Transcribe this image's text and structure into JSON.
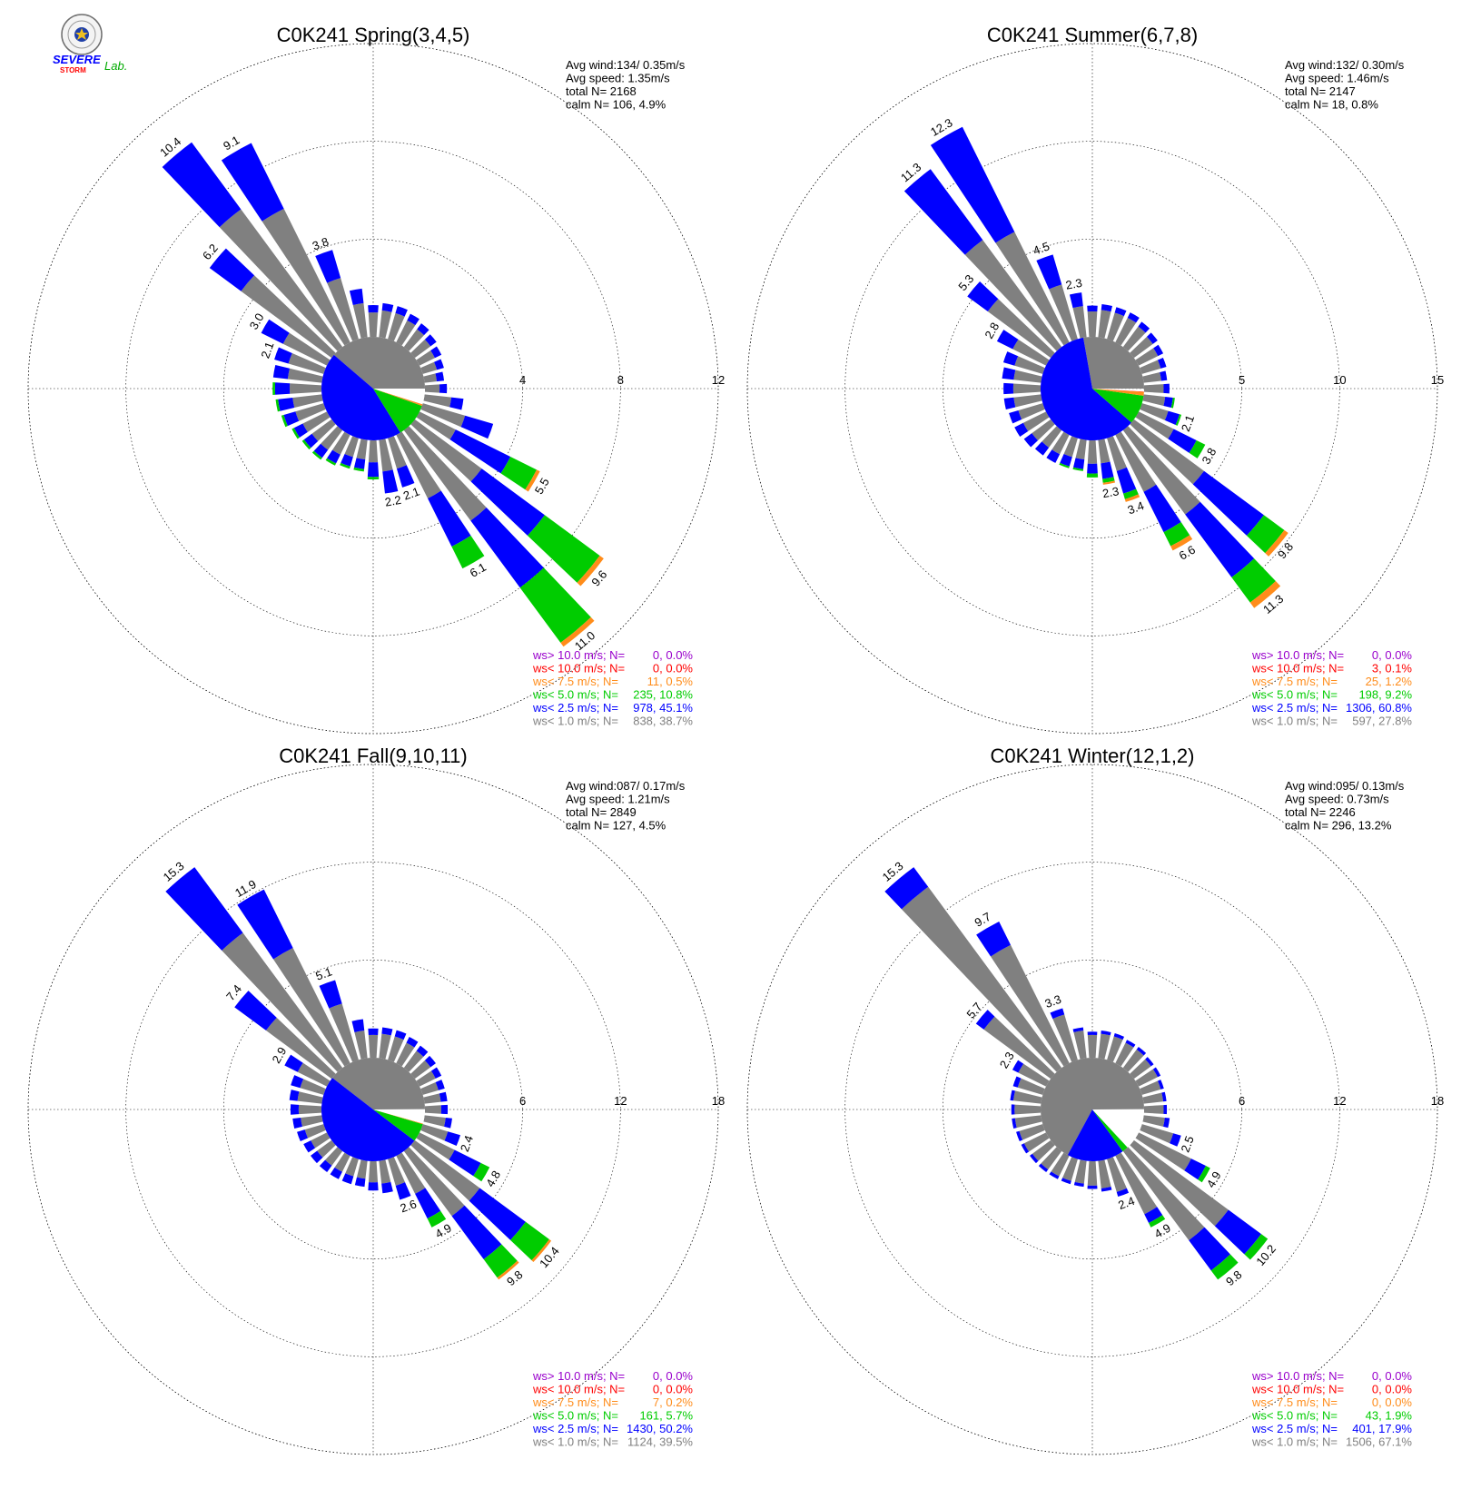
{
  "logo": {
    "line1": "SEVERE",
    "line2": "STORM",
    "line3": "Lab."
  },
  "colors": {
    "gt10": "#9900cc",
    "lt10": "#ff0000",
    "lt7_5": "#ff8c1a",
    "lt5": "#00cc00",
    "lt2_5": "#0000ff",
    "lt1": "#808080",
    "calm": "#ffffff",
    "grid": "#000000",
    "text": "#000000"
  },
  "legend_labels": [
    "ws> 10.0 m/s; N=",
    "ws< 10.0 m/s; N=",
    "ws<  7.5 m/s; N=",
    "ws<  5.0 m/s; N=",
    "ws<  2.5 m/s; N=",
    "ws<  1.0 m/s; N="
  ],
  "chart_data": [
    {
      "type": "wind_rose",
      "title": "C0K241 Spring(3,4,5)",
      "stats": [
        "Avg wind:134/ 0.35m/s",
        "Avg speed: 1.35m/s",
        "total N=      2168",
        "calm N=    106,   4.9%"
      ],
      "rmax": 12,
      "ring_labels": [
        "4",
        "8",
        "12"
      ],
      "inner_pie": [
        {
          "cls": "lt1",
          "pct": 38.7
        },
        {
          "cls": "lt2_5",
          "pct": 45.1
        },
        {
          "cls": "lt5",
          "pct": 10.8
        },
        {
          "cls": "lt7_5",
          "pct": 0.5
        },
        {
          "cls": "calm",
          "pct": 4.9
        }
      ],
      "legend_values": [
        "0,  0.0%",
        "0,  0.0%",
        "11,  0.5%",
        "235, 10.8%",
        "978, 45.1%",
        "838, 38.7%"
      ],
      "sectors": [
        {
          "dir": 0,
          "len": 1.3,
          "lt2_5": 0.3
        },
        {
          "dir": 10,
          "len": 1.4,
          "lt2_5": 0.3
        },
        {
          "dir": 20,
          "len": 1.4,
          "lt2_5": 0.3
        },
        {
          "dir": 30,
          "len": 1.3,
          "lt2_5": 0.3
        },
        {
          "dir": 40,
          "len": 1.2,
          "lt2_5": 0.3
        },
        {
          "dir": 50,
          "len": 1.1,
          "lt2_5": 0.3
        },
        {
          "dir": 60,
          "len": 1.0,
          "lt2_5": 0.3
        },
        {
          "dir": 70,
          "len": 0.9,
          "lt2_5": 0.3
        },
        {
          "dir": 80,
          "len": 0.8,
          "lt2_5": 0.3
        },
        {
          "dir": 90,
          "len": 0.9,
          "lt2_5": 0.3
        },
        {
          "dir": 100,
          "len": 1.6,
          "lt2_5": 0.5
        },
        {
          "dir": 110,
          "len": 3.0,
          "lt2_5": 1.2
        },
        {
          "dir": 120,
          "len": 5.5,
          "lt2_5": 2.5,
          "lt5": 1.2,
          "lt7_5": 0.15,
          "label": "5.5"
        },
        {
          "dir": 130,
          "len": 9.6,
          "lt2_5": 3.2,
          "lt5": 2.8,
          "lt7_5": 0.2,
          "label": "9.6"
        },
        {
          "dir": 140,
          "len": 11.0,
          "lt2_5": 3.4,
          "lt5": 2.8,
          "lt7_5": 0.2,
          "label": "11.0"
        },
        {
          "dir": 150,
          "len": 6.1,
          "lt2_5": 2.2,
          "lt5": 1.0,
          "label": "6.1"
        },
        {
          "dir": 160,
          "len": 2.1,
          "lt2_5": 0.8,
          "label": "2.1"
        },
        {
          "dir": 170,
          "len": 2.2,
          "lt2_5": 0.9,
          "label": "2.2"
        },
        {
          "dir": 180,
          "len": 1.6,
          "lt2_5": 0.6,
          "lt5": 0.1
        },
        {
          "dir": 190,
          "len": 1.3,
          "lt2_5": 0.4,
          "lt5": 0.1
        },
        {
          "dir": 200,
          "len": 1.3,
          "lt2_5": 0.4,
          "lt5": 0.1
        },
        {
          "dir": 210,
          "len": 1.4,
          "lt2_5": 0.4,
          "lt5": 0.1
        },
        {
          "dir": 220,
          "len": 1.5,
          "lt2_5": 0.4,
          "lt5": 0.1
        },
        {
          "dir": 230,
          "len": 1.5,
          "lt2_5": 0.4,
          "lt5": 0.1
        },
        {
          "dir": 240,
          "len": 1.6,
          "lt2_5": 0.4,
          "lt5": 0.1
        },
        {
          "dir": 250,
          "len": 1.8,
          "lt2_5": 0.5,
          "lt5": 0.1
        },
        {
          "dir": 260,
          "len": 1.9,
          "lt2_5": 0.6,
          "lt5": 0.1
        },
        {
          "dir": 270,
          "len": 2.0,
          "lt2_5": 0.6,
          "lt5": 0.1
        },
        {
          "dir": 280,
          "len": 2.0,
          "lt2_5": 0.6
        },
        {
          "dir": 290,
          "len": 2.1,
          "lt2_5": 0.6,
          "label": "2.1"
        },
        {
          "dir": 300,
          "len": 3.0,
          "lt2_5": 1.0,
          "label": "3.0"
        },
        {
          "dir": 310,
          "len": 6.2,
          "lt2_5": 1.6,
          "label": "6.2"
        },
        {
          "dir": 320,
          "len": 10.4,
          "lt2_5": 3.4,
          "label": "10.4"
        },
        {
          "dir": 330,
          "len": 9.1,
          "lt2_5": 3.0,
          "label": "9.1"
        },
        {
          "dir": 340,
          "len": 3.8,
          "lt2_5": 1.2,
          "label": "3.8"
        },
        {
          "dir": 350,
          "len": 2.0,
          "lt2_5": 0.6
        }
      ]
    },
    {
      "type": "wind_rose",
      "title": "C0K241 Summer(6,7,8)",
      "stats": [
        "Avg wind:132/ 0.30m/s",
        "Avg speed: 1.46m/s",
        "total N=      2147",
        "calm N=     18,   0.8%"
      ],
      "rmax": 15,
      "ring_labels": [
        "5",
        "10",
        "15"
      ],
      "inner_pie": [
        {
          "cls": "lt1",
          "pct": 27.8
        },
        {
          "cls": "lt2_5",
          "pct": 60.8
        },
        {
          "cls": "lt5",
          "pct": 9.2
        },
        {
          "cls": "lt7_5",
          "pct": 1.2
        },
        {
          "cls": "lt10",
          "pct": 0.1
        },
        {
          "cls": "calm",
          "pct": 0.8
        }
      ],
      "legend_values": [
        "0,  0.0%",
        "3,  0.1%",
        "25,  1.2%",
        "198,  9.2%",
        "1306, 60.8%",
        "597, 27.8%"
      ],
      "sectors": [
        {
          "dir": 0,
          "len": 1.6,
          "lt2_5": 0.3
        },
        {
          "dir": 10,
          "len": 1.7,
          "lt2_5": 0.3
        },
        {
          "dir": 20,
          "len": 1.7,
          "lt2_5": 0.3
        },
        {
          "dir": 30,
          "len": 1.7,
          "lt2_5": 0.3
        },
        {
          "dir": 40,
          "len": 1.6,
          "lt2_5": 0.3
        },
        {
          "dir": 50,
          "len": 1.5,
          "lt2_5": 0.3
        },
        {
          "dir": 60,
          "len": 1.4,
          "lt2_5": 0.3
        },
        {
          "dir": 70,
          "len": 1.3,
          "lt2_5": 0.3
        },
        {
          "dir": 80,
          "len": 1.2,
          "lt2_5": 0.3
        },
        {
          "dir": 90,
          "len": 1.3,
          "lt2_5": 0.3
        },
        {
          "dir": 100,
          "len": 1.6,
          "lt2_5": 0.4,
          "lt5": 0.1
        },
        {
          "dir": 110,
          "len": 2.1,
          "lt2_5": 0.6,
          "lt5": 0.1,
          "label": "2.1"
        },
        {
          "dir": 120,
          "len": 3.8,
          "lt2_5": 1.3,
          "lt5": 0.5,
          "label": "3.8"
        },
        {
          "dir": 130,
          "len": 9.8,
          "lt2_5": 3.8,
          "lt5": 1.3,
          "lt7_5": 0.25,
          "label": "9.8"
        },
        {
          "dir": 140,
          "len": 11.3,
          "lt2_5": 4.0,
          "lt5": 1.6,
          "lt7_5": 0.35,
          "label": "11.3"
        },
        {
          "dir": 150,
          "len": 6.6,
          "lt2_5": 2.3,
          "lt5": 0.8,
          "lt7_5": 0.25,
          "label": "6.6"
        },
        {
          "dir": 160,
          "len": 3.4,
          "lt2_5": 1.2,
          "lt5": 0.3,
          "lt7_5": 0.15,
          "label": "3.4"
        },
        {
          "dir": 170,
          "len": 2.3,
          "lt2_5": 0.8,
          "lt5": 0.2,
          "lt7_5": 0.1,
          "label": "2.3"
        },
        {
          "dir": 180,
          "len": 1.9,
          "lt2_5": 0.5,
          "lt5": 0.2
        },
        {
          "dir": 190,
          "len": 1.6,
          "lt2_5": 0.5,
          "lt5": 0.1
        },
        {
          "dir": 200,
          "len": 1.6,
          "lt2_5": 0.5,
          "lt5": 0.1
        },
        {
          "dir": 210,
          "len": 1.6,
          "lt2_5": 0.5
        },
        {
          "dir": 220,
          "len": 1.6,
          "lt2_5": 0.5
        },
        {
          "dir": 230,
          "len": 1.7,
          "lt2_5": 0.5
        },
        {
          "dir": 240,
          "len": 1.8,
          "lt2_5": 0.5
        },
        {
          "dir": 250,
          "len": 1.8,
          "lt2_5": 0.5
        },
        {
          "dir": 260,
          "len": 1.9,
          "lt2_5": 0.5
        },
        {
          "dir": 270,
          "len": 1.9,
          "lt2_5": 0.5
        },
        {
          "dir": 280,
          "len": 2.0,
          "lt2_5": 0.6
        },
        {
          "dir": 290,
          "len": 2.1,
          "lt2_5": 0.6
        },
        {
          "dir": 300,
          "len": 2.8,
          "lt2_5": 0.9,
          "label": "2.8"
        },
        {
          "dir": 310,
          "len": 5.3,
          "lt2_5": 1.3,
          "label": "5.3"
        },
        {
          "dir": 320,
          "len": 11.3,
          "lt2_5": 4.5,
          "label": "11.3"
        },
        {
          "dir": 330,
          "len": 12.3,
          "lt2_5": 6.0,
          "label": "12.3"
        },
        {
          "dir": 340,
          "len": 4.5,
          "lt2_5": 1.6,
          "label": "4.5"
        },
        {
          "dir": 350,
          "len": 2.3,
          "lt2_5": 0.7,
          "label": "2.3"
        }
      ]
    },
    {
      "type": "wind_rose",
      "title": "C0K241 Fall(9,10,11)",
      "stats": [
        "Avg wind:087/ 0.17m/s",
        "Avg speed: 1.21m/s",
        "total N=      2849",
        "calm N=    127,   4.5%"
      ],
      "rmax": 18,
      "ring_labels": [
        "6",
        "12",
        "18"
      ],
      "inner_pie": [
        {
          "cls": "lt1",
          "pct": 39.5
        },
        {
          "cls": "lt2_5",
          "pct": 50.2
        },
        {
          "cls": "lt5",
          "pct": 5.7
        },
        {
          "cls": "lt7_5",
          "pct": 0.2
        },
        {
          "cls": "calm",
          "pct": 4.5
        }
      ],
      "legend_values": [
        "0,  0.0%",
        "0,  0.0%",
        "7,  0.2%",
        "161,  5.7%",
        "1430, 50.2%",
        "1124, 39.5%"
      ],
      "sectors": [
        {
          "dir": 0,
          "len": 1.8,
          "lt2_5": 0.4
        },
        {
          "dir": 10,
          "len": 1.9,
          "lt2_5": 0.4
        },
        {
          "dir": 20,
          "len": 1.9,
          "lt2_5": 0.4
        },
        {
          "dir": 30,
          "len": 1.8,
          "lt2_5": 0.4
        },
        {
          "dir": 40,
          "len": 1.7,
          "lt2_5": 0.4
        },
        {
          "dir": 50,
          "len": 1.6,
          "lt2_5": 0.4
        },
        {
          "dir": 60,
          "len": 1.5,
          "lt2_5": 0.4
        },
        {
          "dir": 70,
          "len": 1.4,
          "lt2_5": 0.4
        },
        {
          "dir": 80,
          "len": 1.4,
          "lt2_5": 0.4
        },
        {
          "dir": 90,
          "len": 1.4,
          "lt2_5": 0.4
        },
        {
          "dir": 100,
          "len": 1.7,
          "lt2_5": 0.4
        },
        {
          "dir": 110,
          "len": 2.4,
          "lt2_5": 0.8,
          "label": "2.4"
        },
        {
          "dir": 120,
          "len": 4.8,
          "lt2_5": 1.8,
          "lt5": 0.6,
          "label": "4.8"
        },
        {
          "dir": 130,
          "len": 10.4,
          "lt2_5": 3.5,
          "lt5": 1.8,
          "lt7_5": 0.15,
          "label": "10.4"
        },
        {
          "dir": 140,
          "len": 9.8,
          "lt2_5": 3.3,
          "lt5": 1.4,
          "lt7_5": 0.15,
          "label": "9.8"
        },
        {
          "dir": 150,
          "len": 4.9,
          "lt2_5": 1.7,
          "lt5": 0.6,
          "label": "4.9"
        },
        {
          "dir": 160,
          "len": 2.6,
          "lt2_5": 0.9,
          "label": "2.6"
        },
        {
          "dir": 170,
          "len": 2.0,
          "lt2_5": 0.6
        },
        {
          "dir": 180,
          "len": 1.8,
          "lt2_5": 0.5
        },
        {
          "dir": 190,
          "len": 1.6,
          "lt2_5": 0.5
        },
        {
          "dir": 200,
          "len": 1.6,
          "lt2_5": 0.5
        },
        {
          "dir": 210,
          "len": 1.6,
          "lt2_5": 0.5
        },
        {
          "dir": 220,
          "len": 1.6,
          "lt2_5": 0.5
        },
        {
          "dir": 230,
          "len": 1.6,
          "lt2_5": 0.5
        },
        {
          "dir": 240,
          "len": 1.6,
          "lt2_5": 0.5
        },
        {
          "dir": 250,
          "len": 1.7,
          "lt2_5": 0.5
        },
        {
          "dir": 260,
          "len": 1.8,
          "lt2_5": 0.5
        },
        {
          "dir": 270,
          "len": 1.9,
          "lt2_5": 0.5
        },
        {
          "dir": 280,
          "len": 2.0,
          "lt2_5": 0.5
        },
        {
          "dir": 290,
          "len": 2.1,
          "lt2_5": 0.6
        },
        {
          "dir": 300,
          "len": 2.9,
          "lt2_5": 0.9,
          "label": "2.9"
        },
        {
          "dir": 310,
          "len": 7.4,
          "lt2_5": 2.4,
          "label": "7.4"
        },
        {
          "dir": 320,
          "len": 15.3,
          "lt2_5": 5.0,
          "label": "15.3"
        },
        {
          "dir": 330,
          "len": 11.9,
          "lt2_5": 4.0,
          "label": "11.9"
        },
        {
          "dir": 340,
          "len": 5.1,
          "lt2_5": 1.5,
          "label": "5.1"
        },
        {
          "dir": 350,
          "len": 2.4,
          "lt2_5": 0.7
        }
      ]
    },
    {
      "type": "wind_rose",
      "title": "C0K241 Winter(12,1,2)",
      "stats": [
        "Avg wind:095/ 0.13m/s",
        "Avg speed: 0.73m/s",
        "total N=      2246",
        "calm N=    296,  13.2%"
      ],
      "rmax": 18,
      "ring_labels": [
        "6",
        "12",
        "18"
      ],
      "inner_pie": [
        {
          "cls": "lt1",
          "pct": 67.1
        },
        {
          "cls": "lt2_5",
          "pct": 17.9
        },
        {
          "cls": "lt5",
          "pct": 1.9
        },
        {
          "cls": "calm",
          "pct": 13.2
        }
      ],
      "legend_values": [
        "0,  0.0%",
        "0,  0.0%",
        "0,  0.0%",
        "43,  1.9%",
        "401, 17.9%",
        "1506, 67.1%"
      ],
      "sectors": [
        {
          "dir": 0,
          "len": 1.6,
          "lt2_5": 0.2
        },
        {
          "dir": 10,
          "len": 1.7,
          "lt2_5": 0.2
        },
        {
          "dir": 20,
          "len": 1.7,
          "lt2_5": 0.2
        },
        {
          "dir": 30,
          "len": 1.6,
          "lt2_5": 0.2
        },
        {
          "dir": 40,
          "len": 1.6,
          "lt2_5": 0.2
        },
        {
          "dir": 50,
          "len": 1.5,
          "lt2_5": 0.2
        },
        {
          "dir": 60,
          "len": 1.5,
          "lt2_5": 0.2
        },
        {
          "dir": 70,
          "len": 1.4,
          "lt2_5": 0.2
        },
        {
          "dir": 80,
          "len": 1.4,
          "lt2_5": 0.2
        },
        {
          "dir": 90,
          "len": 1.4,
          "lt2_5": 0.2
        },
        {
          "dir": 100,
          "len": 1.6,
          "lt2_5": 0.3
        },
        {
          "dir": 110,
          "len": 2.5,
          "lt2_5": 0.5,
          "label": "2.5"
        },
        {
          "dir": 120,
          "len": 4.9,
          "lt2_5": 1.0,
          "lt5": 0.3,
          "label": "4.9"
        },
        {
          "dir": 130,
          "len": 10.2,
          "lt2_5": 2.5,
          "lt5": 0.5,
          "label": "10.2"
        },
        {
          "dir": 140,
          "len": 9.8,
          "lt2_5": 2.3,
          "lt5": 0.7,
          "label": "9.8"
        },
        {
          "dir": 150,
          "len": 4.9,
          "lt2_5": 0.6,
          "lt5": 0.3,
          "label": "4.9"
        },
        {
          "dir": 160,
          "len": 2.4,
          "lt2_5": 0.3,
          "label": "2.4"
        },
        {
          "dir": 170,
          "len": 1.9,
          "lt2_5": 0.2
        },
        {
          "dir": 180,
          "len": 1.7,
          "lt2_5": 0.2
        },
        {
          "dir": 190,
          "len": 1.6,
          "lt2_5": 0.2
        },
        {
          "dir": 200,
          "len": 1.6,
          "lt2_5": 0.2
        },
        {
          "dir": 210,
          "len": 1.6,
          "lt2_5": 0.2
        },
        {
          "dir": 220,
          "len": 1.6,
          "lt2_5": 0.2
        },
        {
          "dir": 230,
          "len": 1.6,
          "lt2_5": 0.2
        },
        {
          "dir": 240,
          "len": 1.7,
          "lt2_5": 0.2
        },
        {
          "dir": 250,
          "len": 1.7,
          "lt2_5": 0.2
        },
        {
          "dir": 260,
          "len": 1.8,
          "lt2_5": 0.2
        },
        {
          "dir": 270,
          "len": 1.8,
          "lt2_5": 0.2
        },
        {
          "dir": 280,
          "len": 1.9,
          "lt2_5": 0.2
        },
        {
          "dir": 290,
          "len": 1.9,
          "lt2_5": 0.3
        },
        {
          "dir": 300,
          "len": 2.3,
          "lt2_5": 0.4,
          "label": "2.3"
        },
        {
          "dir": 310,
          "len": 5.7,
          "lt2_5": 0.6,
          "label": "5.7"
        },
        {
          "dir": 320,
          "len": 15.3,
          "lt2_5": 1.5,
          "label": "15.3"
        },
        {
          "dir": 330,
          "len": 9.7,
          "lt2_5": 1.6,
          "label": "9.7"
        },
        {
          "dir": 340,
          "len": 3.3,
          "lt2_5": 0.4,
          "label": "3.3"
        },
        {
          "dir": 350,
          "len": 1.9,
          "lt2_5": 0.2
        }
      ]
    }
  ]
}
